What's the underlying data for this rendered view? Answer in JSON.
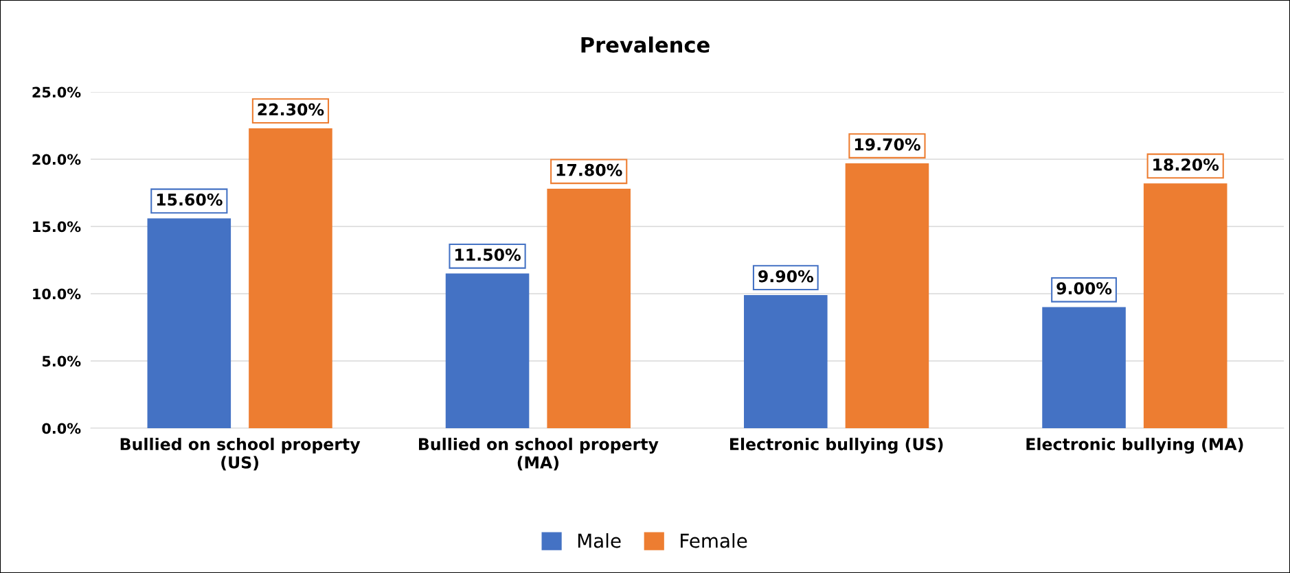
{
  "chart_data": {
    "type": "bar",
    "title": "Prevalence",
    "categories": [
      "Bullied on school property (US)",
      "Bullied on school property (MA)",
      "Electronic bullying (US)",
      "Electronic bullying (MA)"
    ],
    "series": [
      {
        "name": "Male",
        "color": "#4472c4",
        "values": [
          15.6,
          11.5,
          9.9,
          9.0
        ],
        "value_labels": [
          "15.60%",
          "11.50%",
          "9.90%",
          "9.00%"
        ]
      },
      {
        "name": "Female",
        "color": "#ed7d31",
        "values": [
          22.3,
          17.8,
          19.7,
          18.2
        ],
        "value_labels": [
          "22.30%",
          "17.80%",
          "19.70%",
          "18.20%"
        ]
      }
    ],
    "ylim": [
      0,
      25
    ],
    "yticks": [
      {
        "value": 0,
        "label": "0.0%"
      },
      {
        "value": 5,
        "label": "5.0%"
      },
      {
        "value": 10,
        "label": "10.0%"
      },
      {
        "value": 15,
        "label": "15.0%"
      },
      {
        "value": 20,
        "label": "20.0%"
      },
      {
        "value": 25,
        "label": "25.0%"
      }
    ],
    "grid": "y",
    "legend": "bottom"
  }
}
